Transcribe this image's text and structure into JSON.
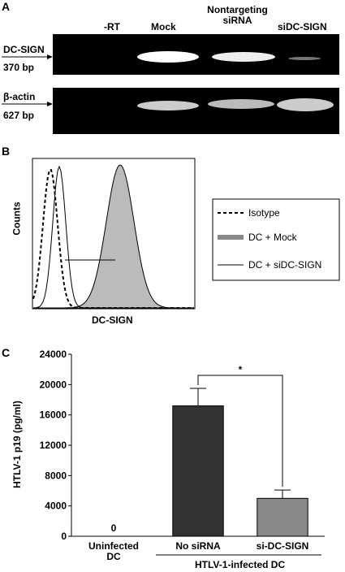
{
  "panel_a": {
    "label": "A",
    "lanes": [
      "-RT",
      "Mock",
      "Nontargeting siRNA",
      "siDC-SIGN"
    ],
    "rows": [
      {
        "name": "DC-SIGN",
        "size": "370 bp"
      },
      {
        "name": "β-actin",
        "size": "627 bp"
      }
    ]
  },
  "panel_b": {
    "label": "B",
    "ylabel": "Counts",
    "xlabel": "DC-SIGN",
    "legend": [
      "Isotype",
      "DC + Mock",
      "DC + siDC-SIGN"
    ]
  },
  "chart_data": {
    "type": "bar",
    "label": "C",
    "ylabel": "HTLV-1 p19 (pg/ml)",
    "categories": [
      "Uninfected DC",
      "No siRNA",
      "si-DC-SIGN"
    ],
    "group_label": "HTLV-1-infected DC",
    "values": [
      0,
      17200,
      5000
    ],
    "errors": [
      null,
      2300,
      1100
    ],
    "value_labels": [
      "0",
      null,
      null
    ],
    "colors": [
      "#333333",
      "#333333",
      "#888888"
    ],
    "significance": "*",
    "ylim": [
      0,
      24000
    ],
    "yticks": [
      0,
      4000,
      8000,
      12000,
      16000,
      20000,
      24000
    ]
  }
}
